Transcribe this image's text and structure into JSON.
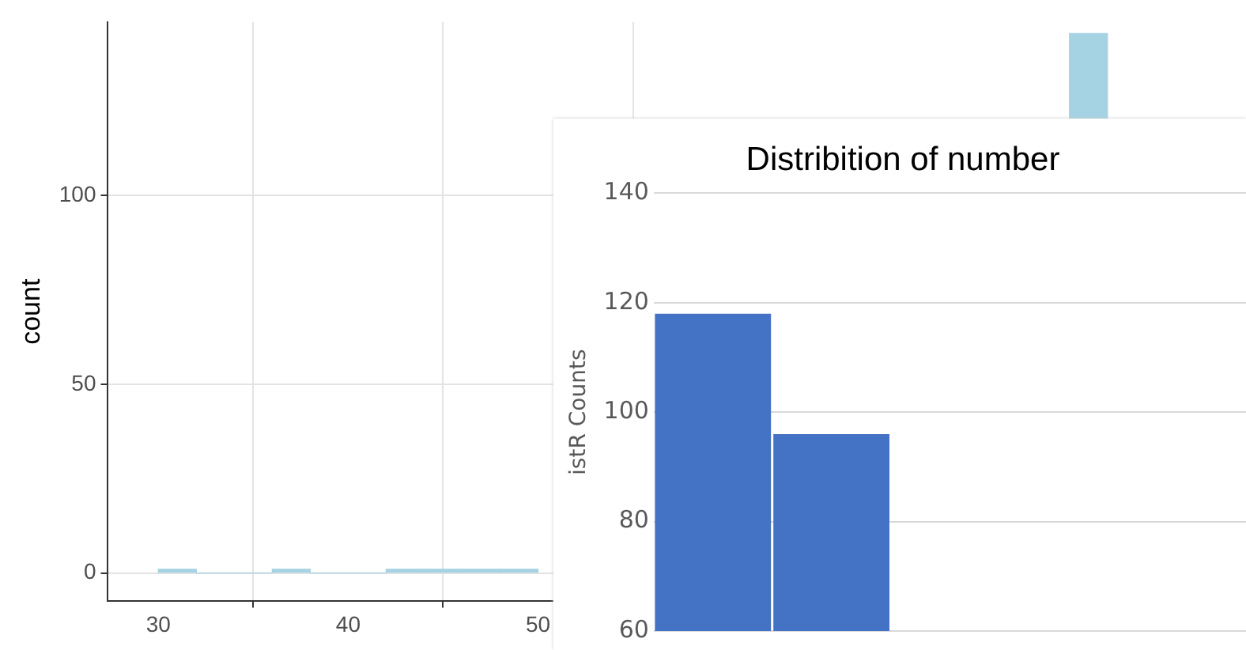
{
  "chart_data": [
    {
      "type": "histogram",
      "ylabel": "count",
      "bins": [
        30,
        32,
        34,
        36,
        38,
        40,
        42,
        44,
        46,
        48,
        50,
        52,
        54,
        56,
        58,
        60,
        62,
        64,
        66,
        68,
        70,
        72,
        74,
        76,
        78,
        80,
        82,
        84,
        86,
        88
      ],
      "values": [
        1,
        0,
        0,
        1,
        0,
        0,
        1,
        1,
        1,
        1,
        null,
        null,
        null,
        null,
        null,
        null,
        null,
        null,
        null,
        null,
        null,
        null,
        null,
        null,
        143,
        null,
        null,
        null,
        null
      ],
      "color": "#a6d3e3",
      "xlim": [
        27.3,
        87.3
      ],
      "ylim": [
        -7.5,
        146
      ],
      "xticks": [
        30,
        40,
        50
      ],
      "yticks": [
        0,
        50,
        100
      ],
      "grid": true,
      "legend": false
    },
    {
      "type": "bar",
      "title": "Distribition of number",
      "ylabel": "istR Counts",
      "categories": [
        null,
        null,
        null,
        null,
        null
      ],
      "values": [
        118,
        96,
        null,
        null,
        null
      ],
      "color": "#4472c4",
      "ylim": [
        60,
        140
      ],
      "yticks": [
        60,
        80,
        100,
        120,
        140
      ],
      "grid": "y",
      "legend": false,
      "tick_labels": "y"
    }
  ]
}
